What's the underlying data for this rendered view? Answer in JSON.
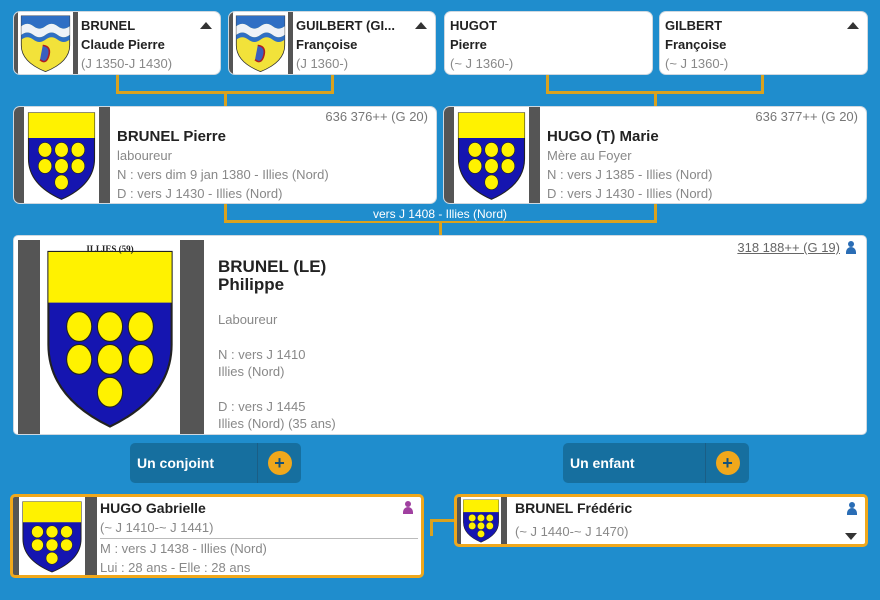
{
  "colors": {
    "background": "#1f8dcd",
    "connector": "#d9a21f",
    "button": "#166f9f",
    "accent": "#f0a81c",
    "male": "#2a6db5",
    "female": "#a040a0"
  },
  "grandparents": [
    {
      "surname": "BRUNEL",
      "given": "Claude Pierre",
      "dates": "(J 1350-J 1430)",
      "crest": "wave",
      "expand_icon": "caret-up-icon"
    },
    {
      "surname": "GUILBERT (GI...",
      "given": "Françoise",
      "dates": "(J 1360-)",
      "crest": "wave",
      "expand_icon": "caret-up-icon"
    },
    {
      "surname": "HUGOT",
      "given": "Pierre",
      "dates": "(~ J 1360-)"
    },
    {
      "surname": "GILBERT",
      "given": "Françoise",
      "dates": "(~ J 1360-)",
      "expand_icon": "caret-up-icon"
    }
  ],
  "parents": [
    {
      "sosa": "636 376++ (G 20)",
      "name": "BRUNEL Pierre",
      "occupation": "laboureur",
      "birth": "N : vers dim 9 jan 1380 - Illies (Nord)",
      "death": "D : vers J 1430 - Illies (Nord)"
    },
    {
      "sosa": "636 377++ (G 20)",
      "name": "HUGO (T) Marie",
      "occupation": "Mère au Foyer",
      "birth": "N : vers J 1385 - Illies (Nord)",
      "death": "D : vers J 1430 - Illies (Nord)"
    }
  ],
  "marriage": "vers J 1408 - Illies (Nord)",
  "main": {
    "crest_caption": "ILLIES (59)",
    "surname": "BRUNEL (LE)",
    "given": "Philippe",
    "occupation": "Laboureur",
    "birth": "N : vers J 1410",
    "birth_place": "Illies (Nord)",
    "death": "D : vers J 1445",
    "death_place": "Illies (Nord) (35 ans)",
    "sosa": "318 188++ (G 19)"
  },
  "buttons": {
    "spouse": "Un conjoint",
    "child": "Un enfant",
    "plus": "+"
  },
  "spouse": {
    "name": "HUGO Gabrielle",
    "dates": "(~ J 1410-~ J 1441)",
    "marriage": "M : vers J 1438 - Illies (Nord)",
    "ages": "Lui : 28 ans - Elle : 28 ans"
  },
  "child": {
    "name": "BRUNEL Frédéric",
    "dates": "(~ J 1440-~ J 1470)"
  }
}
